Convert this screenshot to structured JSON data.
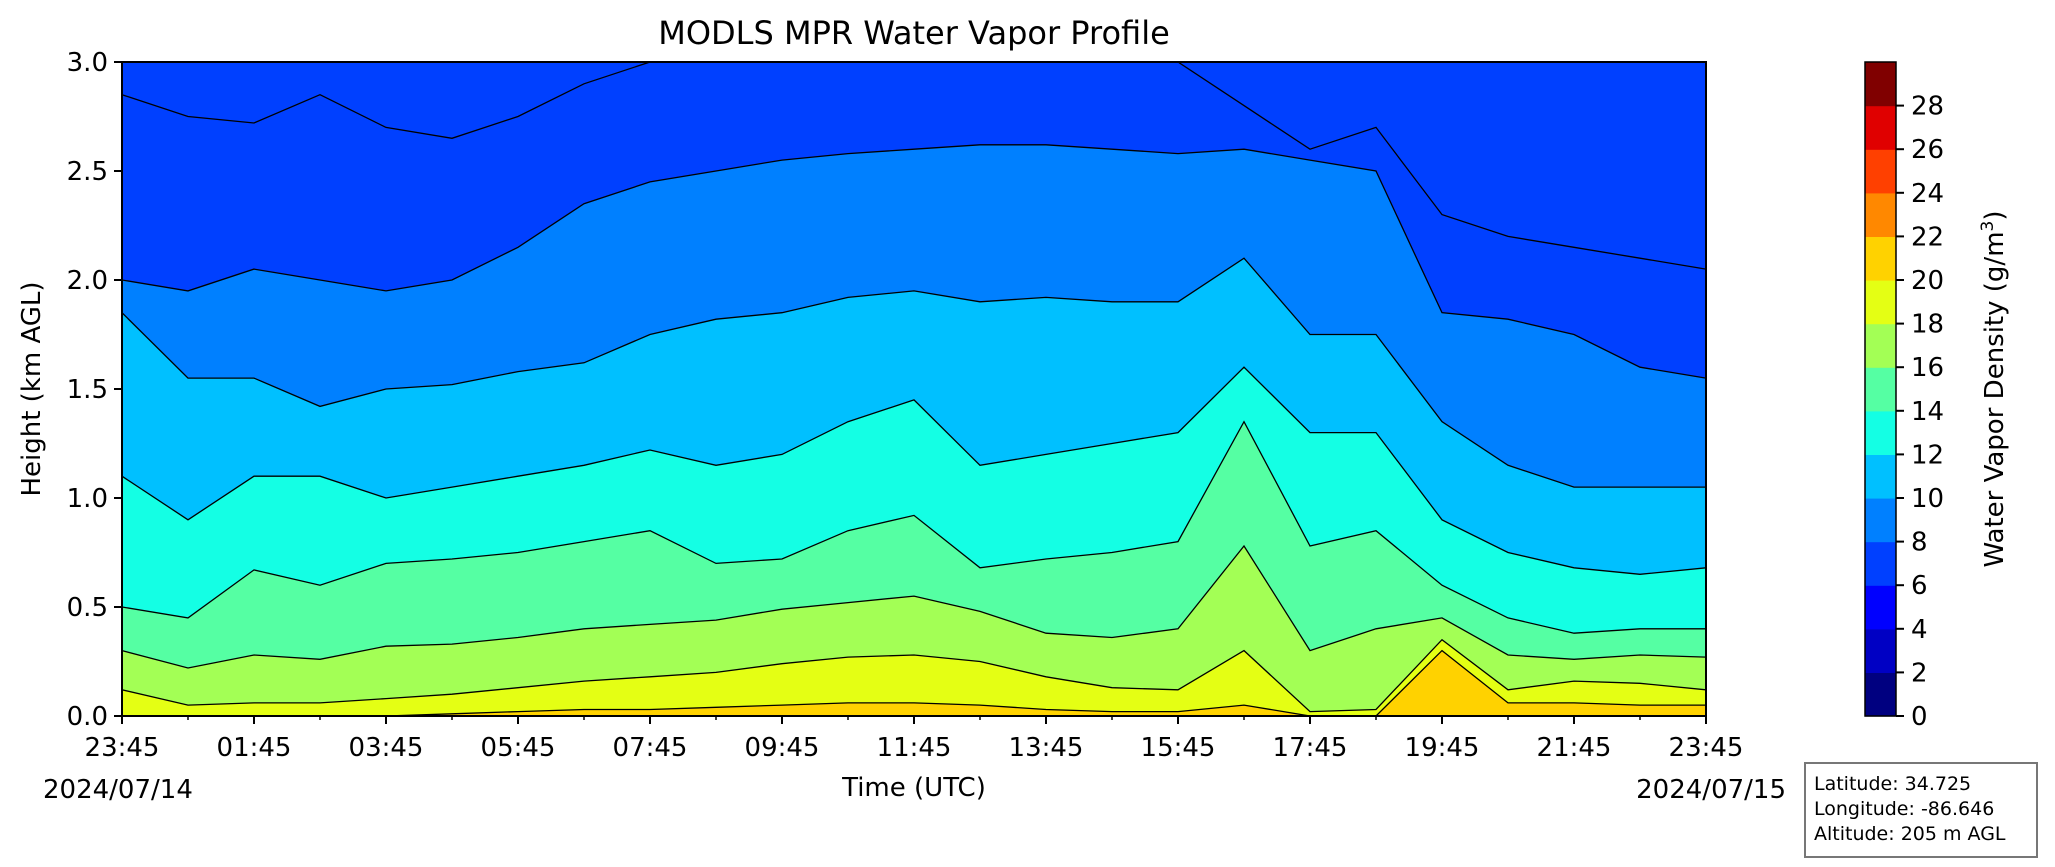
{
  "chart_data": {
    "type": "heatmap",
    "subtype": "filled-contour",
    "title": "MODLS MPR Water Vapor Profile",
    "xlabel": "Time (UTC)",
    "ylabel": "Height (km AGL)",
    "x_ticks": [
      "23:45",
      "01:45",
      "03:45",
      "05:45",
      "07:45",
      "09:45",
      "11:45",
      "13:45",
      "15:45",
      "17:45",
      "19:45",
      "21:45",
      "23:45"
    ],
    "x_range": [
      "2024/07/14 23:45",
      "2024/07/15 23:45"
    ],
    "date_start": "2024/07/14",
    "date_end": "2024/07/15",
    "y_ticks": [
      "0.0",
      "0.5",
      "1.0",
      "1.5",
      "2.0",
      "2.5",
      "3.0"
    ],
    "ylim": [
      0,
      3
    ],
    "colorbar": {
      "label": "Water Vapor Density (g/m³)",
      "label_text": "Water Vapor Density (g/m",
      "label_sup": "3",
      "label_tail": ")",
      "levels": [
        0,
        2,
        4,
        6,
        8,
        10,
        12,
        14,
        16,
        18,
        20,
        22,
        24,
        26,
        28
      ],
      "tick_labels": [
        "0",
        "2",
        "4",
        "6",
        "8",
        "10",
        "12",
        "14",
        "16",
        "18",
        "20",
        "22",
        "24",
        "26",
        "28"
      ],
      "colors": [
        "#000080",
        "#0000c4",
        "#0000ff",
        "#0040ff",
        "#0080ff",
        "#00c0ff",
        "#14ffe4",
        "#55ffa3",
        "#a3ff55",
        "#e4ff14",
        "#ffd200",
        "#ff8800",
        "#ff4000",
        "#e00000",
        "#800000"
      ]
    },
    "contour_levels_km": {
      "time_hours": [
        0,
        1,
        2,
        3,
        4,
        5,
        6,
        7,
        8,
        9,
        10,
        11,
        12,
        13,
        14,
        15,
        16,
        17,
        18,
        19,
        20,
        21,
        22,
        23,
        24
      ],
      "22": [
        0.0,
        0.0,
        0.0,
        0.0,
        0.0,
        0.0,
        0.0,
        0.0,
        0.0,
        0.0,
        0.0,
        0.0,
        0.0,
        0.0,
        0.0,
        0.0,
        0.0,
        0.0,
        0.0,
        0.0,
        0.0,
        0.0,
        0.0,
        0.0,
        0.0
      ],
      "20": [
        0.0,
        0.0,
        0.0,
        0.0,
        0.0,
        0.01,
        0.02,
        0.03,
        0.03,
        0.04,
        0.05,
        0.06,
        0.06,
        0.05,
        0.03,
        0.02,
        0.02,
        0.05,
        0.0,
        0.0,
        0.3,
        0.06,
        0.06,
        0.05,
        0.05
      ],
      "18": [
        0.12,
        0.05,
        0.06,
        0.06,
        0.08,
        0.1,
        0.13,
        0.16,
        0.18,
        0.2,
        0.24,
        0.27,
        0.28,
        0.25,
        0.18,
        0.13,
        0.12,
        0.3,
        0.02,
        0.03,
        0.35,
        0.12,
        0.16,
        0.15,
        0.12
      ],
      "16": [
        0.3,
        0.22,
        0.28,
        0.26,
        0.32,
        0.33,
        0.36,
        0.4,
        0.42,
        0.44,
        0.49,
        0.52,
        0.55,
        0.48,
        0.38,
        0.36,
        0.4,
        0.78,
        0.3,
        0.4,
        0.45,
        0.28,
        0.26,
        0.28,
        0.27
      ],
      "14": [
        0.5,
        0.45,
        0.67,
        0.6,
        0.7,
        0.72,
        0.75,
        0.8,
        0.85,
        0.7,
        0.72,
        0.85,
        0.92,
        0.68,
        0.72,
        0.75,
        0.8,
        1.35,
        0.78,
        0.85,
        0.6,
        0.45,
        0.38,
        0.4,
        0.4
      ],
      "12": [
        1.1,
        0.9,
        1.1,
        1.1,
        1.0,
        1.05,
        1.1,
        1.15,
        1.22,
        1.15,
        1.2,
        1.35,
        1.45,
        1.15,
        1.2,
        1.25,
        1.3,
        1.6,
        1.3,
        1.3,
        0.9,
        0.75,
        0.68,
        0.65,
        0.68
      ],
      "10": [
        1.85,
        1.55,
        1.55,
        1.42,
        1.5,
        1.52,
        1.58,
        1.62,
        1.75,
        1.82,
        1.85,
        1.92,
        1.95,
        1.9,
        1.92,
        1.9,
        1.9,
        2.1,
        1.75,
        1.75,
        1.35,
        1.15,
        1.05,
        1.05,
        1.05
      ],
      "8": [
        2.0,
        1.95,
        2.05,
        2.0,
        1.95,
        2.0,
        2.15,
        2.35,
        2.45,
        2.5,
        2.55,
        2.58,
        2.6,
        2.62,
        2.62,
        2.6,
        2.58,
        2.6,
        2.55,
        2.5,
        1.85,
        1.82,
        1.75,
        1.6,
        1.55
      ],
      "6": [
        2.85,
        2.75,
        2.72,
        2.85,
        2.7,
        2.65,
        2.75,
        2.9,
        3.0,
        3.0,
        3.0,
        3.0,
        3.0,
        3.0,
        3.0,
        3.0,
        3.0,
        2.8,
        2.6,
        2.7,
        2.3,
        2.2,
        2.15,
        2.1,
        2.05
      ]
    }
  },
  "info_box": {
    "latitude": "Latitude: 34.725",
    "longitude": "Longitude: -86.646",
    "altitude": "Altitude: 205 m AGL"
  }
}
